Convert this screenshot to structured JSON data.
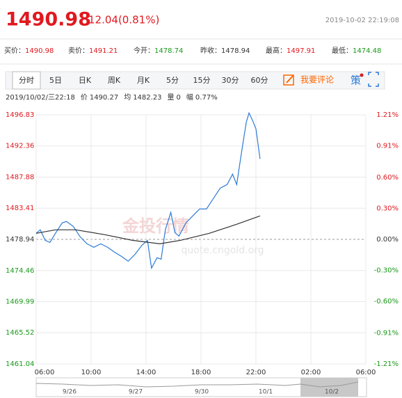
{
  "header": {
    "price": "1490.98",
    "change": "12.04(0.81%)",
    "datetime": "2019-10-02 22:19:08"
  },
  "quotes": [
    {
      "label": "买价：",
      "value": "1490.98",
      "color": "#e0191f"
    },
    {
      "label": "卖价：",
      "value": "1491.21",
      "color": "#e0191f"
    },
    {
      "label": "今开：",
      "value": "1478.74",
      "color": "#1a9a1a"
    },
    {
      "label": "昨收：",
      "value": "1478.94",
      "color": "#333333"
    },
    {
      "label": "最高：",
      "value": "1497.91",
      "color": "#e0191f"
    },
    {
      "label": "最低：",
      "value": "1474.48",
      "color": "#1a9a1a"
    }
  ],
  "tabs": [
    "分时",
    "5日",
    "日K",
    "周K",
    "月K",
    "5分",
    "15分",
    "30分",
    "60分"
  ],
  "comment": "我要评论",
  "strategy": "策",
  "info": [
    "2019/10/02/三22:18",
    "价",
    "1490.27",
    "均",
    "1482.23",
    "量",
    "0",
    "幅",
    "0.77%"
  ],
  "watermark": [
    "金投行情",
    "quote.cngold.org"
  ],
  "navigator": [
    "9/26",
    "9/27",
    "9/30",
    "10/1",
    "10/2"
  ],
  "chart_data": {
    "type": "line",
    "xlim": [
      0,
      24
    ],
    "xticks": [
      {
        "value": 0,
        "label": "06:00"
      },
      {
        "value": 4,
        "label": "10:00"
      },
      {
        "value": 8,
        "label": "14:00"
      },
      {
        "value": 12,
        "label": "18:00"
      },
      {
        "value": 16,
        "label": "22:00"
      },
      {
        "value": 20,
        "label": "02:00"
      },
      {
        "value": 24,
        "label": "06:00"
      }
    ],
    "ylim": [
      1461.04,
      1496.83
    ],
    "yticks": [
      1496.83,
      1492.36,
      1487.88,
      1483.41,
      1478.94,
      1474.46,
      1469.99,
      1465.52,
      1461.04
    ],
    "y2lim": [
      -1.21,
      1.21
    ],
    "y2ticks": [
      {
        "value": 1.21,
        "label": "1.21%"
      },
      {
        "value": 0.91,
        "label": "0.91%"
      },
      {
        "value": 0.6,
        "label": "0.60%"
      },
      {
        "value": 0.3,
        "label": "0.30%"
      },
      {
        "value": 0,
        "label": "0.00%"
      },
      {
        "value": -0.3,
        "label": "-0.30%"
      },
      {
        "value": -0.6,
        "label": "-0.60%"
      },
      {
        "value": -0.91,
        "label": "-0.91%"
      },
      {
        "value": -1.21,
        "label": "-1.21%"
      }
    ],
    "grid": true,
    "series": [
      {
        "color": "#2b7ad6",
        "x": [
          0,
          0.3,
          0.66,
          1.0,
          1.4,
          1.9,
          2.2,
          2.7,
          3.2,
          3.7,
          4.2,
          4.7,
          5.2,
          5.7,
          6.2,
          6.7,
          7.2,
          7.7,
          8.1,
          8.4,
          8.8,
          9.1,
          9.4,
          9.8,
          10.1,
          10.4,
          10.9,
          11.4,
          11.9,
          12.4,
          12.9,
          13.4,
          13.9,
          14.3,
          14.6,
          14.9,
          15.1,
          15.3,
          15.5,
          15.8,
          16.0,
          16.3
        ],
        "values": [
          1479.8,
          1480.3,
          1478.8,
          1478.5,
          1479.8,
          1481.3,
          1481.5,
          1480.8,
          1479.3,
          1478.3,
          1477.8,
          1478.3,
          1477.8,
          1477.1,
          1476.5,
          1475.8,
          1476.8,
          1478.1,
          1478.8,
          1474.8,
          1476.3,
          1476.1,
          1480.3,
          1482.8,
          1479.9,
          1479.4,
          1481.3,
          1482.3,
          1483.3,
          1483.3,
          1484.8,
          1486.3,
          1486.8,
          1488.3,
          1486.8,
          1490.8,
          1493.3,
          1495.8,
          1497.1,
          1495.8,
          1494.8,
          1490.5
        ]
      },
      {
        "color": "#333333",
        "x": [
          0,
          1.4,
          2.9,
          5.0,
          7.0,
          9.0,
          10.5,
          12.6,
          14.6,
          16.3
        ],
        "values": [
          1479.8,
          1480.3,
          1480.3,
          1479.6,
          1478.8,
          1478.3,
          1478.8,
          1479.8,
          1481.1,
          1482.3
        ]
      }
    ]
  }
}
